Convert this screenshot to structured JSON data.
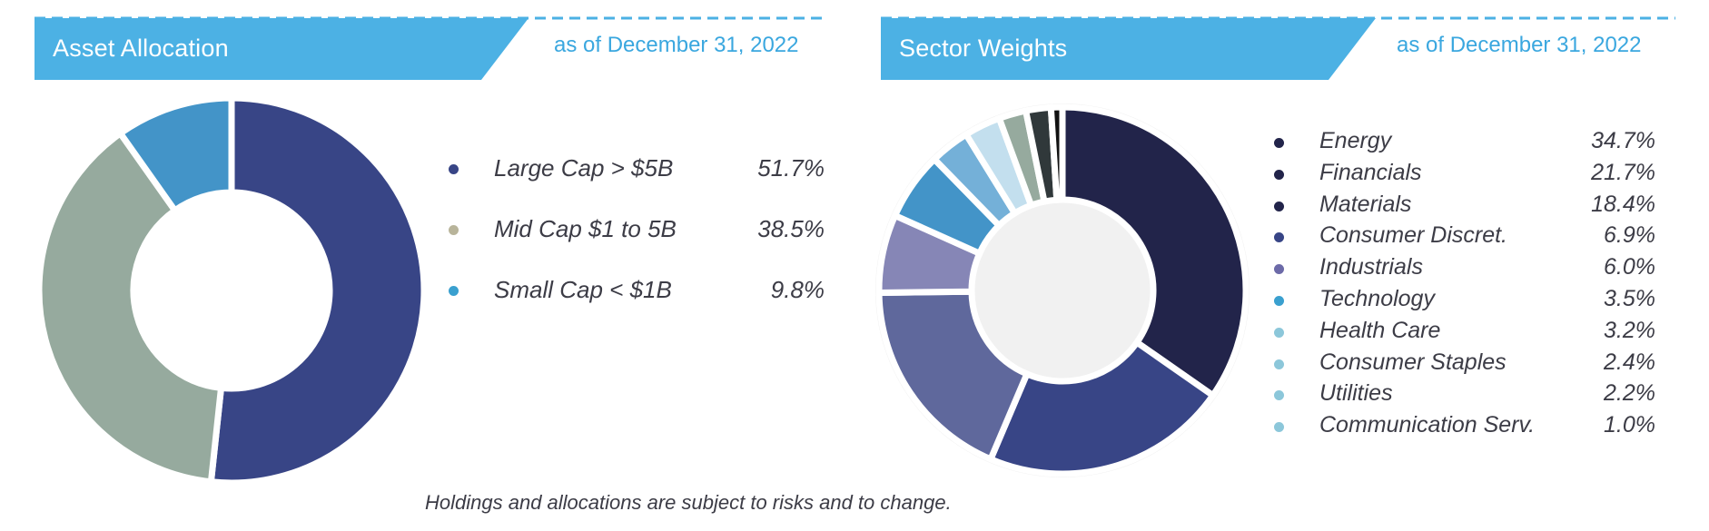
{
  "asset_panel": {
    "title": "Asset Allocation",
    "date": "as of December 31, 2022"
  },
  "sector_panel": {
    "title": "Sector Weights",
    "date": "as of December 31, 2022"
  },
  "footnote": "Holdings and allocations are subject to risks and to change.",
  "colors": {
    "header": "#4cb1e4",
    "dash": "#4cb1e4"
  },
  "chart_data": [
    {
      "type": "pie",
      "variant": "donut",
      "title": "Asset Allocation",
      "series": [
        {
          "label": "Large Cap > $5B",
          "value": 51.7,
          "display": "51.7%",
          "color": "#384586"
        },
        {
          "label": "Mid Cap $1 to 5B",
          "value": 38.5,
          "display": "38.5%",
          "color": "#96aa9e"
        },
        {
          "label": "Small Cap < $1B",
          "value": 9.8,
          "display": "9.8%",
          "color": "#4394c8"
        }
      ]
    },
    {
      "type": "pie",
      "variant": "donut",
      "title": "Sector Weights",
      "series": [
        {
          "label": "Energy",
          "value": 34.7,
          "display": "34.7%",
          "color": "#22244a"
        },
        {
          "label": "Financials",
          "value": 21.7,
          "display": "21.7%",
          "color": "#384586"
        },
        {
          "label": "Materials",
          "value": 18.4,
          "display": "18.4%",
          "color": "#5f689c"
        },
        {
          "label": "Consumer Discret.",
          "value": 6.9,
          "display": "6.9%",
          "color": "#8686b6"
        },
        {
          "label": "Industrials",
          "value": 6.0,
          "display": "6.0%",
          "color": "#4394c8"
        },
        {
          "label": "Technology",
          "value": 3.5,
          "display": "3.5%",
          "color": "#74b0d8"
        },
        {
          "label": "Health Care",
          "value": 3.2,
          "display": "3.2%",
          "color": "#c3dfee"
        },
        {
          "label": "Consumer Staples",
          "value": 2.4,
          "display": "2.4%",
          "color": "#96aa9e"
        },
        {
          "label": "Utilities",
          "value": 2.2,
          "display": "2.2%",
          "color": "#30383a"
        },
        {
          "label": "Communication Serv.",
          "value": 1.0,
          "display": "1.0%",
          "color": "#111111"
        }
      ],
      "legend_dot_colors": [
        "#22244a",
        "#22244a",
        "#22244a",
        "#384586",
        "#6c6aa8",
        "#3aa0cf",
        "#8cc7da",
        "#8cc7da",
        "#8cc7da",
        "#8cc7da"
      ]
    }
  ]
}
